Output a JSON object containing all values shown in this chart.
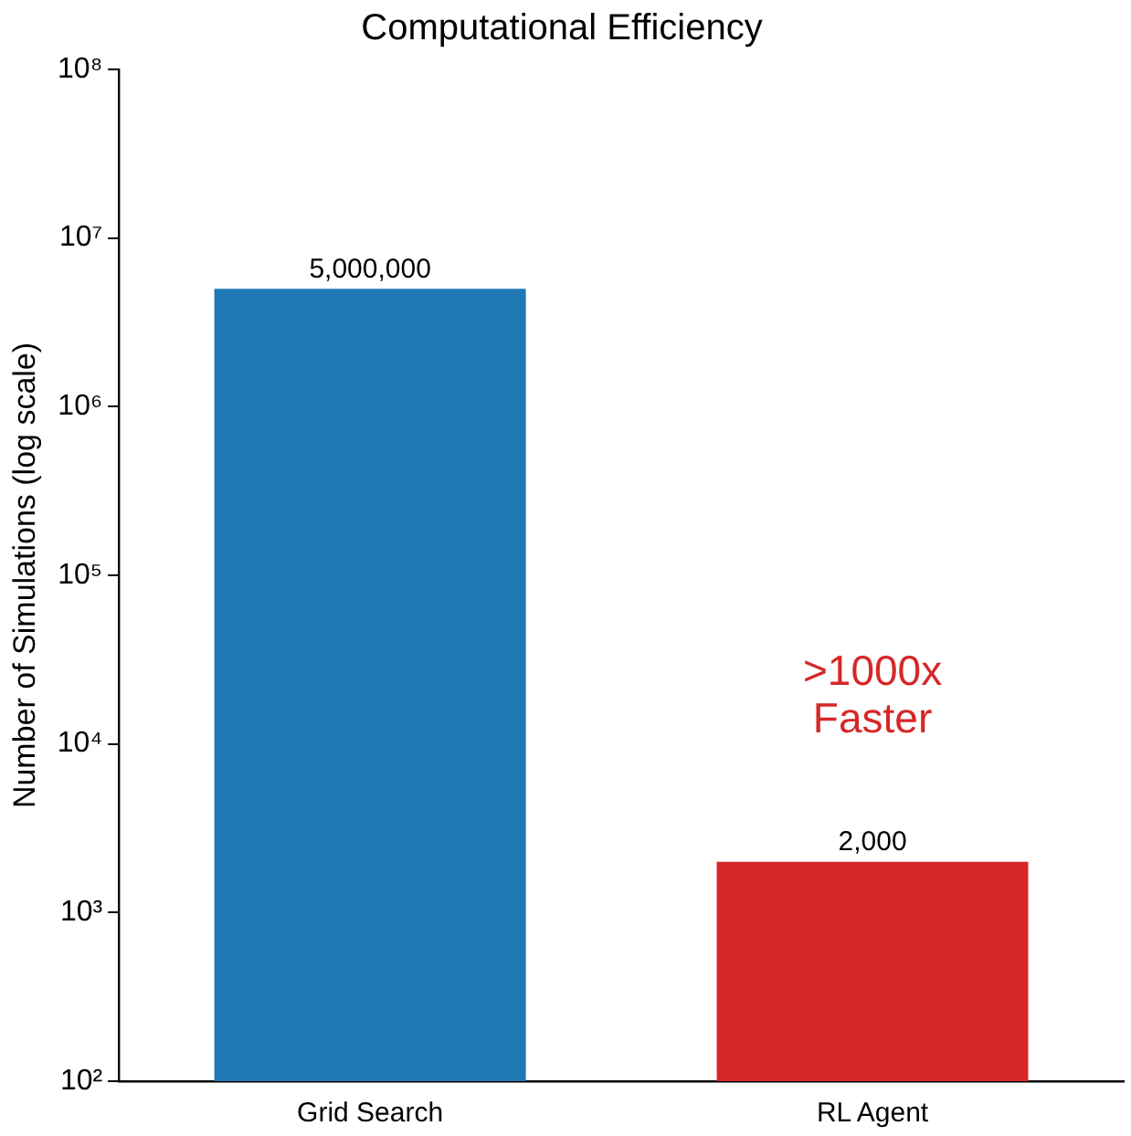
{
  "chart_data": {
    "type": "bar",
    "title": "Computational Efficiency",
    "ylabel": "Number of Simulations (log scale)",
    "categories": [
      "Grid Search",
      "RL Agent"
    ],
    "values": [
      5000000,
      2000
    ],
    "colors": [
      "#1f77b4",
      "#d62728"
    ],
    "value_labels": [
      "5,000,000",
      "2,000"
    ],
    "log": "y",
    "ylim": [
      100,
      100000000
    ],
    "yticks": [
      {
        "value": 100,
        "label": "10²"
      },
      {
        "value": 1000,
        "label": "10³"
      },
      {
        "value": 10000,
        "label": "10⁴"
      },
      {
        "value": 100000,
        "label": "10⁵"
      },
      {
        "value": 1000000,
        "label": "10⁶"
      },
      {
        "value": 10000000,
        "label": "10⁷"
      },
      {
        "value": 100000000,
        "label": "10⁸"
      }
    ],
    "annotations": [
      ">1000x\nFaster"
    ],
    "grid": false,
    "legend": false
  }
}
